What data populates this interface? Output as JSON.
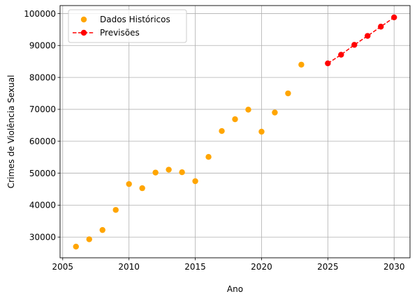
{
  "chart_data": {
    "type": "scatter",
    "xlabel": "Ano",
    "ylabel": "Crimes de Violência Sexual",
    "xlim": [
      2004.8,
      2031.2
    ],
    "ylim": [
      23500,
      102500
    ],
    "xticks": [
      2005,
      2010,
      2015,
      2020,
      2025,
      2030
    ],
    "yticks": [
      30000,
      40000,
      50000,
      60000,
      70000,
      80000,
      90000,
      100000
    ],
    "grid": true,
    "legend_position": "top-left",
    "series": [
      {
        "name": "Dados Históricos",
        "style": "markers",
        "color": "#ffa500",
        "x": [
          2006,
          2007,
          2008,
          2009,
          2010,
          2011,
          2012,
          2013,
          2014,
          2015,
          2016,
          2017,
          2018,
          2019,
          2020,
          2021,
          2022,
          2023
        ],
        "y": [
          27000,
          29300,
          32200,
          38500,
          46600,
          45300,
          50200,
          51100,
          50300,
          47500,
          55100,
          63200,
          66900,
          69900,
          63000,
          69000,
          75000,
          84000
        ]
      },
      {
        "name": "Previsões",
        "style": "dashed-line-markers",
        "color": "#ff0000",
        "x": [
          2025,
          2026,
          2027,
          2028,
          2029,
          2030
        ],
        "y": [
          84400,
          87100,
          90200,
          93000,
          95900,
          98800
        ]
      }
    ]
  }
}
